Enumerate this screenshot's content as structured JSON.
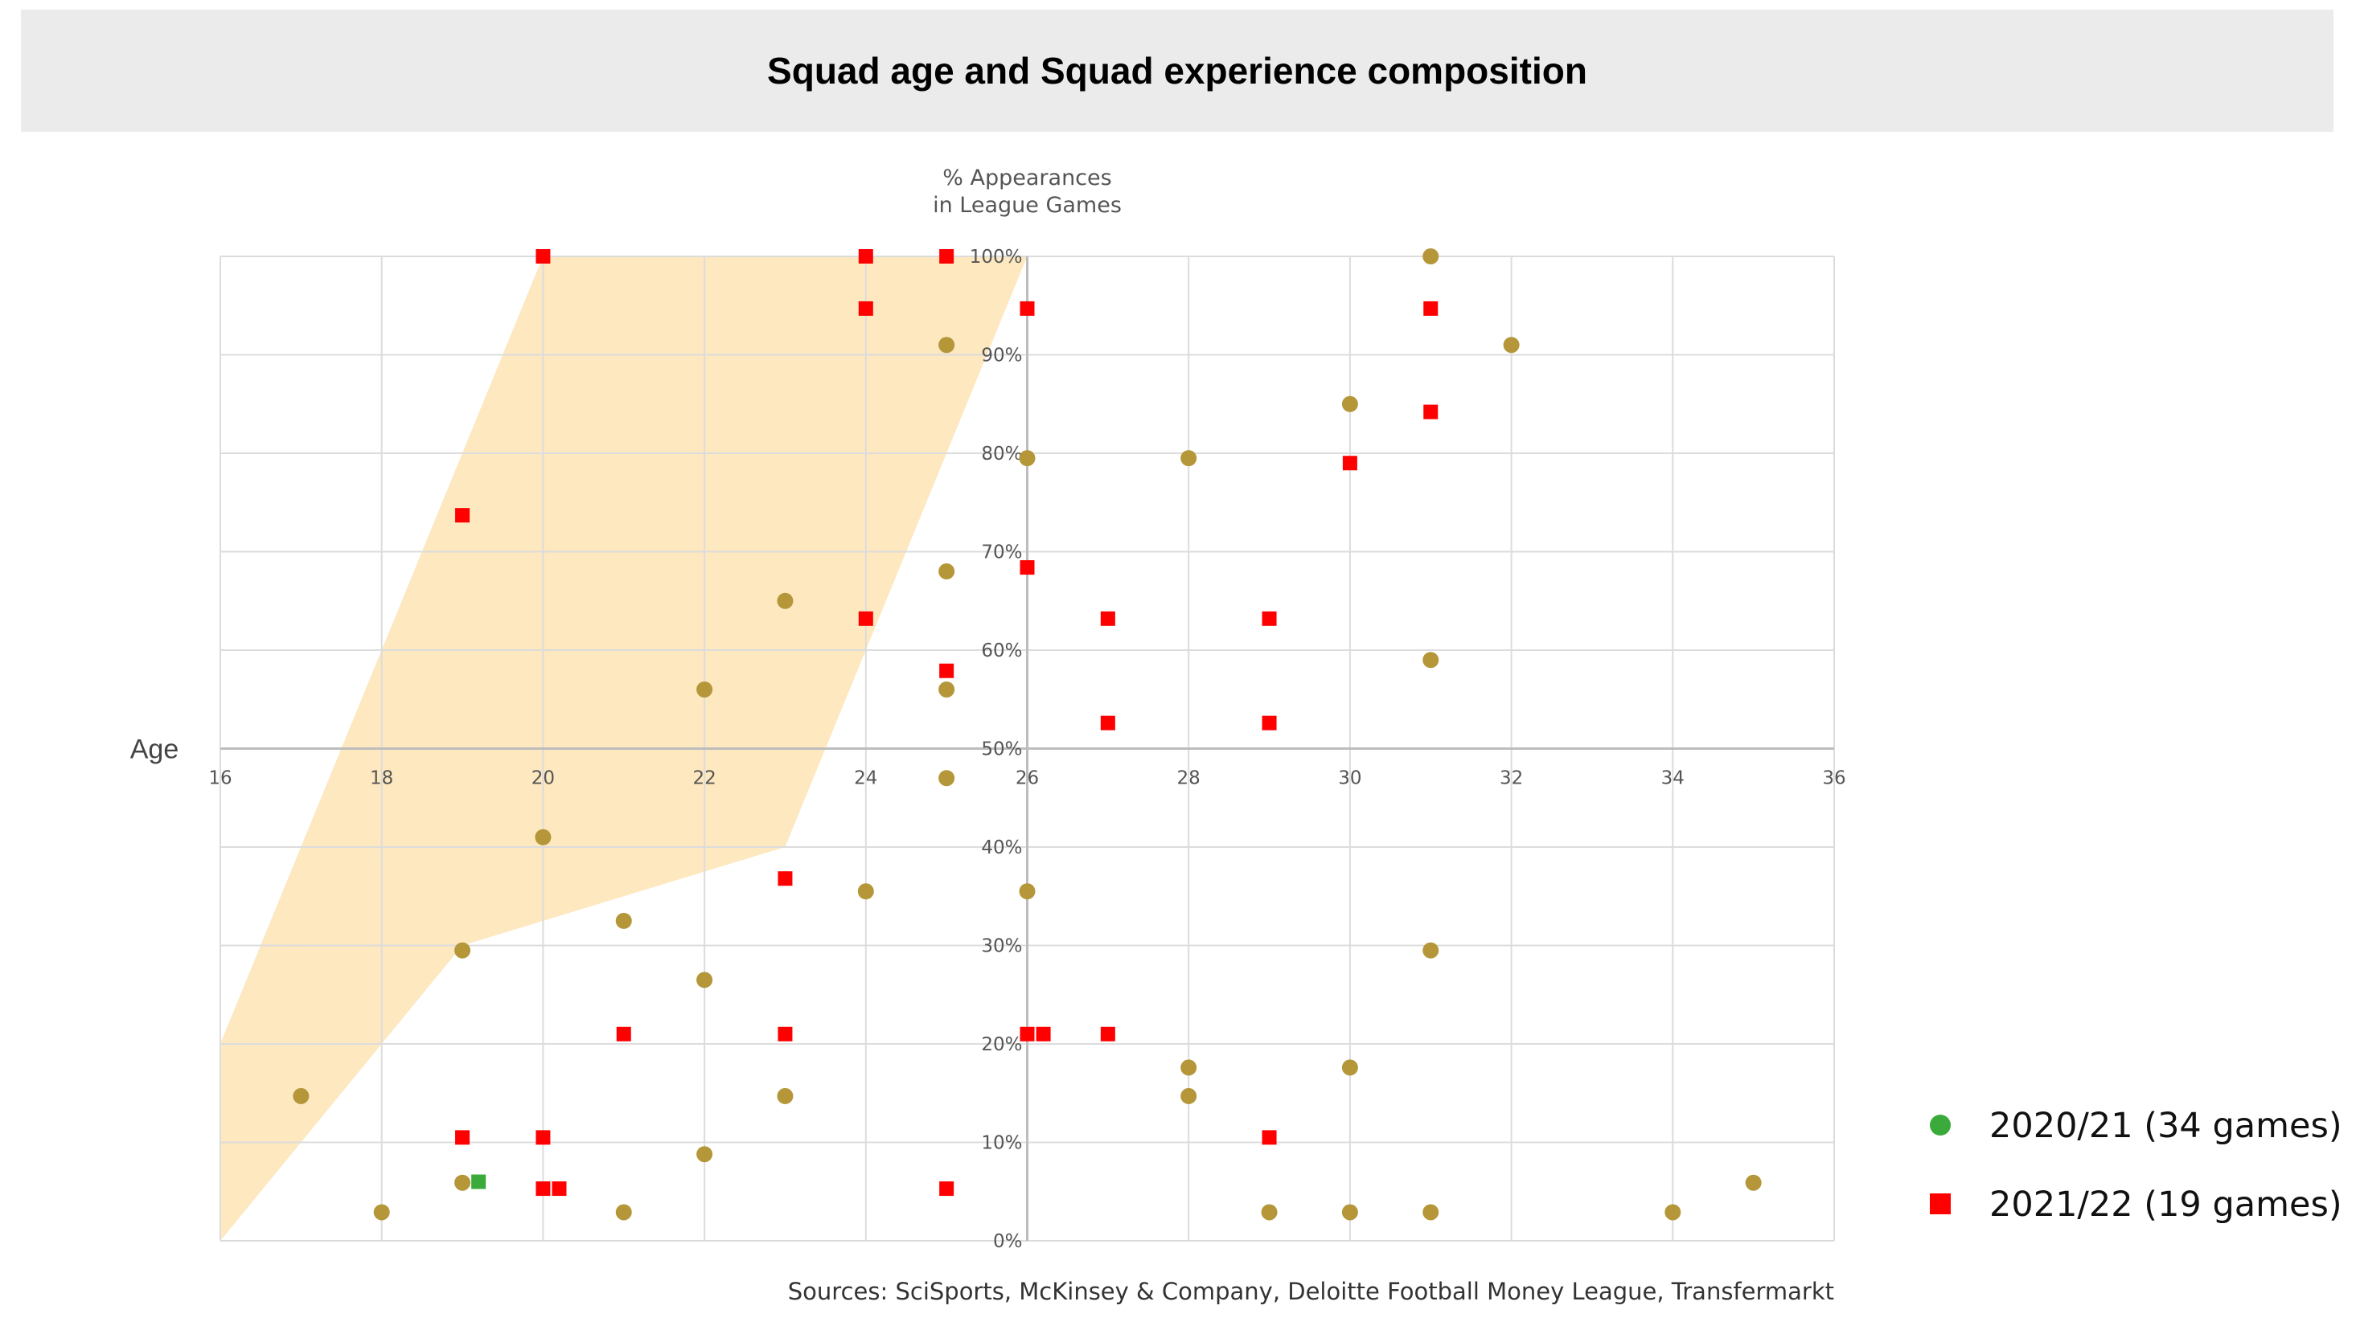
{
  "chart_data": {
    "type": "scatter",
    "title": "Squad age and Squad experience composition",
    "xlabel": "Age",
    "ylabel": "% Appearances in League Games",
    "ylabel_lines": [
      "% Appearances",
      "in League Games"
    ],
    "xlim": [
      16,
      36
    ],
    "ylim": [
      0,
      100
    ],
    "x_ticks": [
      16,
      18,
      20,
      22,
      24,
      26,
      28,
      30,
      32,
      34,
      36
    ],
    "y_ticks": [
      0,
      10,
      20,
      30,
      40,
      50,
      60,
      70,
      80,
      90,
      100
    ],
    "y_tick_labels": [
      "0%",
      "10%",
      "20%",
      "30%",
      "40%",
      "50%",
      "60%",
      "70%",
      "80%",
      "90%",
      "100%"
    ],
    "grid": true,
    "legend_position": "bottom-right",
    "shaded_regions": [
      {
        "name": "region-inner",
        "color": "#e6dcc0",
        "points": [
          [
            16,
            20
          ],
          [
            20,
            100
          ],
          [
            23,
            100
          ],
          [
            23,
            40
          ],
          [
            18,
            40
          ],
          [
            16,
            20
          ]
        ]
      },
      {
        "name": "region-outer",
        "color": "#fde8c0",
        "points": [
          [
            16,
            20
          ],
          [
            20,
            100
          ],
          [
            26,
            100
          ],
          [
            23,
            40
          ],
          [
            18,
            40
          ],
          [
            16,
            20
          ]
        ]
      },
      {
        "name": "region-lower",
        "color": "#fde8c0",
        "points": [
          [
            16,
            0
          ],
          [
            16,
            20
          ],
          [
            18,
            40
          ],
          [
            23,
            40
          ],
          [
            19,
            30
          ],
          [
            16,
            0
          ]
        ]
      }
    ],
    "series": [
      {
        "name": "2020/21 (34 games)",
        "marker": "circle",
        "color": "#b5973a",
        "legend_color": "#3aaa3a",
        "points": [
          [
            31,
            100
          ],
          [
            32,
            91
          ],
          [
            25,
            91
          ],
          [
            30,
            85
          ],
          [
            26,
            79.5
          ],
          [
            28,
            79.5
          ],
          [
            25,
            68
          ],
          [
            23,
            65
          ],
          [
            31,
            59
          ],
          [
            22,
            56
          ],
          [
            25,
            56
          ],
          [
            25,
            47
          ],
          [
            20,
            41
          ],
          [
            24,
            35.5
          ],
          [
            26,
            35.5
          ],
          [
            21,
            32.5
          ],
          [
            19,
            29.5
          ],
          [
            31,
            29.5
          ],
          [
            22,
            26.5
          ],
          [
            28,
            17.6
          ],
          [
            30,
            17.6
          ],
          [
            17,
            14.7
          ],
          [
            23,
            14.7
          ],
          [
            28,
            14.7
          ],
          [
            22,
            8.8
          ],
          [
            19,
            5.9
          ],
          [
            35,
            5.9
          ],
          [
            18,
            2.9
          ],
          [
            21,
            2.9
          ],
          [
            29,
            2.9
          ],
          [
            30,
            2.9
          ],
          [
            31,
            2.9
          ],
          [
            34,
            2.9
          ]
        ]
      },
      {
        "name": "2021/22 (19 games)",
        "marker": "square",
        "color": "#ff0000",
        "legend_color": "#ff0000",
        "points": [
          [
            20,
            100
          ],
          [
            24,
            100
          ],
          [
            25,
            100
          ],
          [
            24,
            94.7
          ],
          [
            26,
            94.7
          ],
          [
            31,
            94.7
          ],
          [
            31,
            84.2
          ],
          [
            30,
            79
          ],
          [
            19,
            73.7
          ],
          [
            26,
            68.4
          ],
          [
            24,
            63.2
          ],
          [
            27,
            63.2
          ],
          [
            29,
            63.2
          ],
          [
            25,
            57.9
          ],
          [
            27,
            52.6
          ],
          [
            29,
            52.6
          ],
          [
            23,
            36.8
          ],
          [
            21,
            21
          ],
          [
            23,
            21
          ],
          [
            26,
            21
          ],
          [
            26.2,
            21
          ],
          [
            27,
            21
          ],
          [
            19,
            10.5
          ],
          [
            20,
            10.5
          ],
          [
            29,
            10.5
          ],
          [
            20,
            5.3
          ],
          [
            20.2,
            5.3
          ],
          [
            25,
            5.3
          ]
        ]
      },
      {
        "name": "highlight",
        "marker": "square",
        "color": "#3aaa3a",
        "points": [
          [
            19.2,
            6
          ]
        ]
      }
    ],
    "legend": [
      {
        "label": "2020/21 (34 games)",
        "marker": "circle",
        "color": "#3aaa3a"
      },
      {
        "label": "2021/22 (19 games)",
        "marker": "square",
        "color": "#ff0000"
      }
    ],
    "source": "Sources: SciSports, McKinsey & Company, Deloitte Football Money League, Transfermarkt"
  }
}
